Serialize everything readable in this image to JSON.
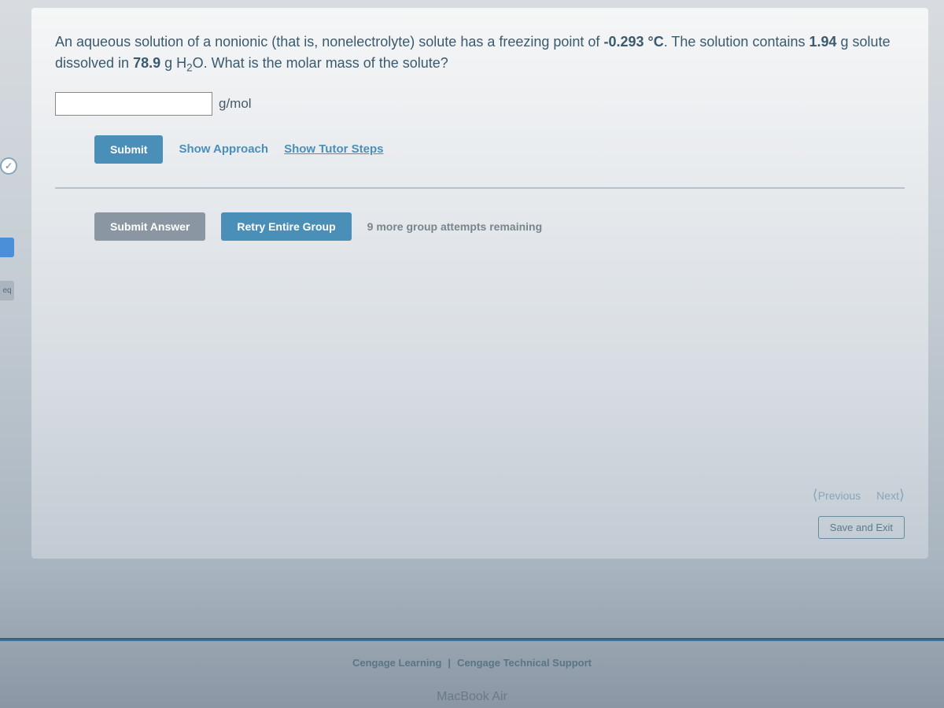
{
  "question": {
    "text_part1": "An aqueous solution of a nonionic (that is, nonelectrolyte) solute has a freezing point of ",
    "freezing_point": "-0.293 °C",
    "text_part2": ". The solution contains ",
    "mass_solute": "1.94",
    "text_part3": " g solute dissolved in ",
    "mass_solvent": "78.9",
    "text_part4": " g H",
    "subscript": "2",
    "text_part5": "O. What is the molar mass of the solute?",
    "unit": "g/mol"
  },
  "buttons": {
    "submit": "Submit",
    "show_approach": "Show Approach",
    "show_tutor": "Show Tutor Steps",
    "submit_answer": "Submit Answer",
    "retry_group": "Retry Entire Group",
    "save_exit": "Save and Exit"
  },
  "attempts": {
    "remaining_text": "9 more group attempts remaining"
  },
  "nav": {
    "previous": "Previous",
    "next": "Next"
  },
  "sidebar": {
    "badge": "✓",
    "eq_label": "eq"
  },
  "footer": {
    "link1": "Cengage Learning",
    "separator": "|",
    "link2": "Cengage Technical Support"
  },
  "device": "MacBook Air",
  "colors": {
    "primary_blue": "#4a8fb8",
    "gray_button": "#8a96a1",
    "text_teal": "#3a5a6e"
  }
}
